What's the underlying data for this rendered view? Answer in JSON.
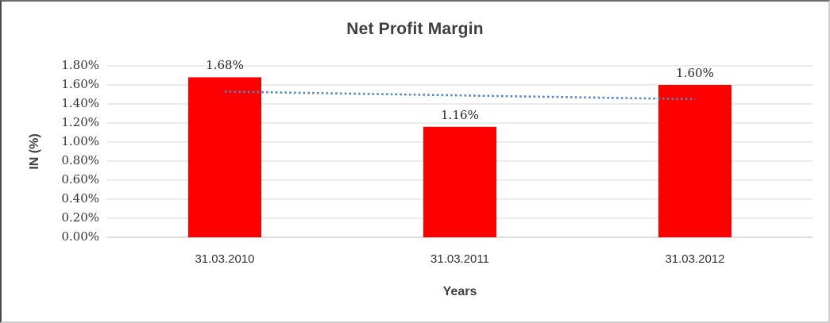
{
  "chart_data": {
    "type": "bar",
    "title": "Net Profit Margin",
    "xlabel": "Years",
    "ylabel": "IN (%)",
    "categories": [
      "31.03.2010",
      "31.03.2011",
      "31.03.2012"
    ],
    "values": [
      1.68,
      1.16,
      1.6
    ],
    "data_labels": [
      "1.68%",
      "1.16%",
      "1.60%"
    ],
    "ytick_labels": [
      "0.00%",
      "0.20%",
      "0.40%",
      "0.60%",
      "0.80%",
      "1.00%",
      "1.20%",
      "1.40%",
      "1.60%",
      "1.80%"
    ],
    "ylim": [
      0,
      1.8
    ],
    "ytick_step": 0.2,
    "grid": true,
    "legend": "none",
    "bar_color": "#ff0000",
    "gridline_color": "#d9d9d9",
    "axis_line_color": "#c6c6c6",
    "title_color": "#3f3f3f",
    "tick_text_color": "#333333",
    "trendline": {
      "type": "linear",
      "style": "dotted",
      "color": "#4e87c8",
      "start_value": 1.53,
      "end_value": 1.45
    }
  }
}
